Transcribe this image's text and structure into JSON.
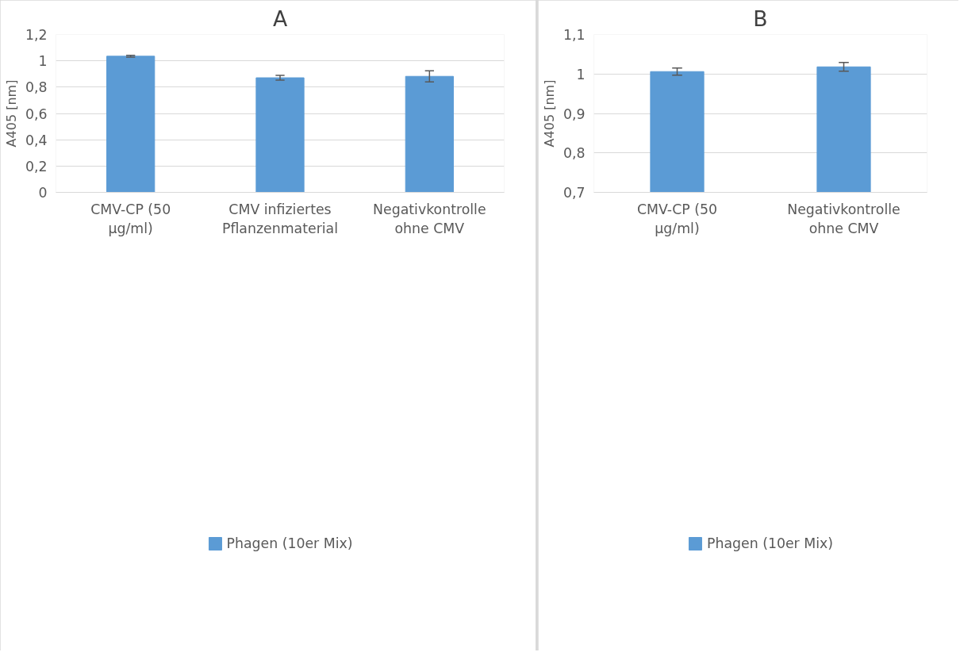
{
  "chart_data": [
    {
      "type": "bar",
      "title": "A",
      "ylabel": "A405 [nm]",
      "categories": [
        "CMV-CP (50 µg/ml)",
        "CMV infiziertes Pflanzenmaterial",
        "Negativkontrolle ohne CMV"
      ],
      "series": [
        {
          "name": "Phagen (10er Mix)",
          "color": "#5b9bd5",
          "values": [
            1.035,
            0.871,
            0.882
          ],
          "errors": [
            0.007,
            0.018,
            0.042
          ]
        }
      ],
      "ylim": [
        0,
        1.2
      ],
      "yticks": [
        0,
        {
          "value": 0.2,
          "label": "0,2"
        },
        {
          "value": 0.4,
          "label": "0,4"
        },
        {
          "value": 0.6,
          "label": "0,6"
        },
        {
          "value": 0.8,
          "label": "0,8"
        },
        1,
        {
          "value": 1.2,
          "label": "1,2"
        }
      ],
      "grid": "y",
      "legend": "bottom"
    },
    {
      "type": "bar",
      "title": "B",
      "ylabel": "A405 [nm]",
      "categories": [
        "CMV-CP (50 µg/ml)",
        "Negativkontrolle ohne CMV"
      ],
      "series": [
        {
          "name": "Phagen (10er Mix)",
          "color": "#5b9bd5",
          "values": [
            1.006,
            1.018
          ],
          "errors": [
            0.009,
            0.011
          ]
        }
      ],
      "ylim": [
        0.7,
        1.1
      ],
      "yticks": [
        {
          "value": 0.7,
          "label": "0,7"
        },
        {
          "value": 0.8,
          "label": "0,8"
        },
        {
          "value": 0.9,
          "label": "0,9"
        },
        1,
        {
          "value": 1.1,
          "label": "1,1"
        }
      ],
      "grid": "y",
      "legend": "bottom"
    }
  ]
}
